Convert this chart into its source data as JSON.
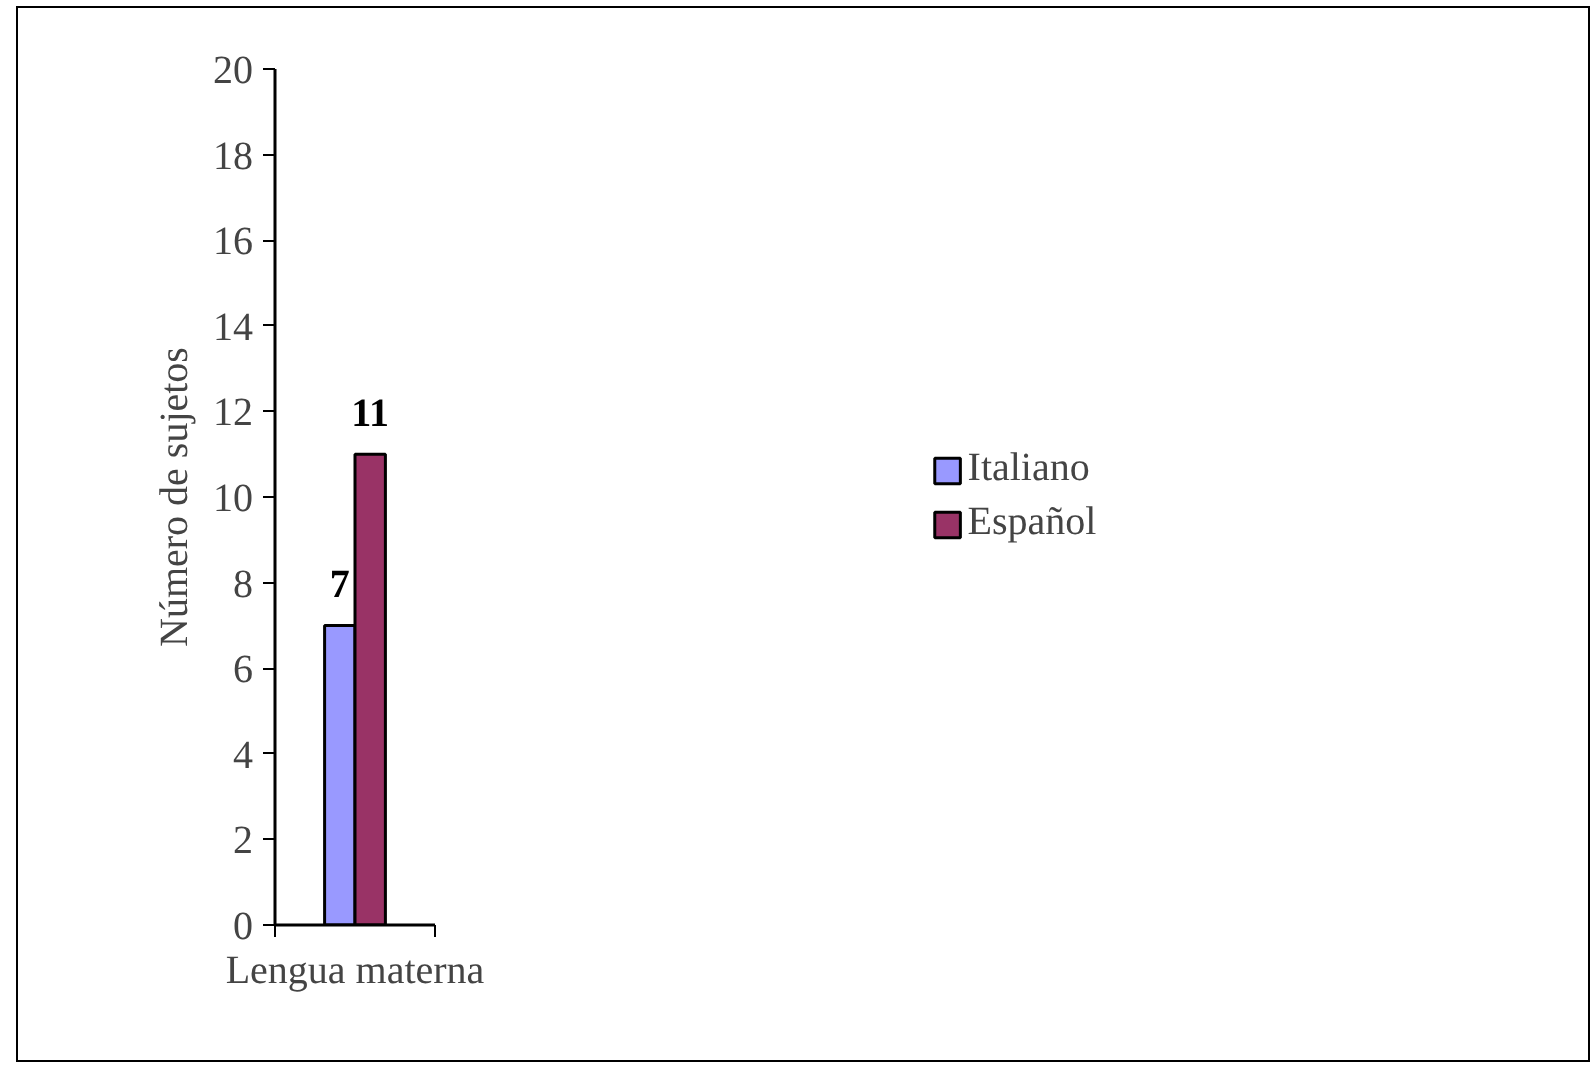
{
  "chart_data": {
    "type": "bar",
    "categories": [
      null
    ],
    "xlabel": "Lengua materna",
    "ylabel": "Número de sujetos",
    "series": [
      {
        "name": "Italiano",
        "color": "#9999ff",
        "values": [
          7
        ]
      },
      {
        "name": "Español",
        "color": "#993366",
        "values": [
          11
        ]
      }
    ],
    "ylim": [
      0,
      20
    ],
    "yticks": [
      0,
      2,
      4,
      6,
      8,
      10,
      12,
      14,
      16,
      18,
      20
    ],
    "grid": false,
    "legend": "right",
    "data_labels": true
  }
}
